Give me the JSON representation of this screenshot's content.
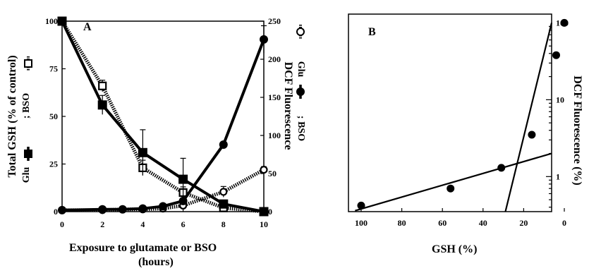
{
  "chart_data": [
    {
      "panel": "A",
      "type": "line",
      "xlabel": [
        "Exposure to glutamate or BSO",
        "(hours)"
      ],
      "ylabel_left": [
        "Total GSH (% of control)",
        "Glu",
        ";  BSO"
      ],
      "ylabel_right": [
        "DCF Fluorescence",
        "Glu",
        ";  BSO"
      ],
      "xlim": [
        0,
        10
      ],
      "ylim_left": [
        0,
        100
      ],
      "ylim_right": [
        0,
        250
      ],
      "xticks": [
        "0",
        "2",
        "4",
        "6",
        "8",
        "10"
      ],
      "yticks_left": [
        "0",
        "25",
        "50",
        "75",
        "100"
      ],
      "yticks_right": [
        "0",
        "50",
        "100",
        "150",
        "200",
        "250"
      ],
      "series": [
        {
          "legend": "Glu",
          "marker": "filled-square",
          "line": "solid",
          "axis": "left",
          "color": "#000000",
          "x": [
            0,
            2,
            4,
            6,
            8,
            10
          ],
          "y": [
            100,
            56,
            31,
            17,
            4,
            0
          ],
          "err": [
            0,
            5,
            12,
            11,
            1,
            0
          ]
        },
        {
          "legend": "BSO",
          "marker": "open-square",
          "line": "dotted",
          "axis": "left",
          "color": "#000000",
          "x": [
            0,
            2,
            4,
            6,
            8,
            10
          ],
          "y": [
            100,
            66,
            23,
            10,
            2,
            0
          ],
          "err": [
            0,
            3,
            4,
            3,
            1,
            0
          ]
        },
        {
          "legend": "Glu",
          "marker": "filled-circle",
          "line": "solid",
          "axis": "right",
          "color": "#000000",
          "x": [
            0,
            2,
            3,
            4,
            5,
            6,
            8,
            10
          ],
          "y": [
            2,
            3,
            3,
            4,
            7,
            14,
            88,
            226
          ],
          "err": [
            0,
            0,
            0,
            0,
            0,
            0,
            0,
            18
          ]
        },
        {
          "legend": "BSO",
          "marker": "open-circle",
          "line": "dotted",
          "axis": "right",
          "color": "#000000",
          "x": [
            0,
            2,
            3,
            4,
            5,
            6,
            8,
            10
          ],
          "y": [
            2,
            2,
            3,
            3,
            4,
            8,
            26,
            55
          ],
          "err": [
            0,
            0,
            0,
            0,
            0,
            0,
            7,
            4
          ]
        }
      ]
    },
    {
      "panel": "B",
      "type": "scatter",
      "xlabel": "GSH (%)",
      "ylabel_right": "DCF Fluorescence (%)",
      "xlim": [
        100,
        0
      ],
      "ylog": true,
      "ylim": [
        0.35,
        130
      ],
      "xticks": [
        "100",
        "80",
        "60",
        "40",
        "20",
        "0"
      ],
      "yticks": [
        "1",
        "10",
        "100"
      ],
      "points": [
        {
          "x": 100,
          "y": 0.42
        },
        {
          "x": 56,
          "y": 0.7
        },
        {
          "x": 31,
          "y": 1.3
        },
        {
          "x": 16,
          "y": 3.5
        },
        {
          "x": 4,
          "y": 38
        },
        {
          "x": 0,
          "y": 100
        }
      ],
      "fit_lines": [
        {
          "x": [
            103,
            0
          ],
          "y": [
            0.36,
            2.0
          ]
        },
        {
          "x": [
            29,
            0
          ],
          "y": [
            0.35,
            100
          ]
        }
      ]
    }
  ]
}
